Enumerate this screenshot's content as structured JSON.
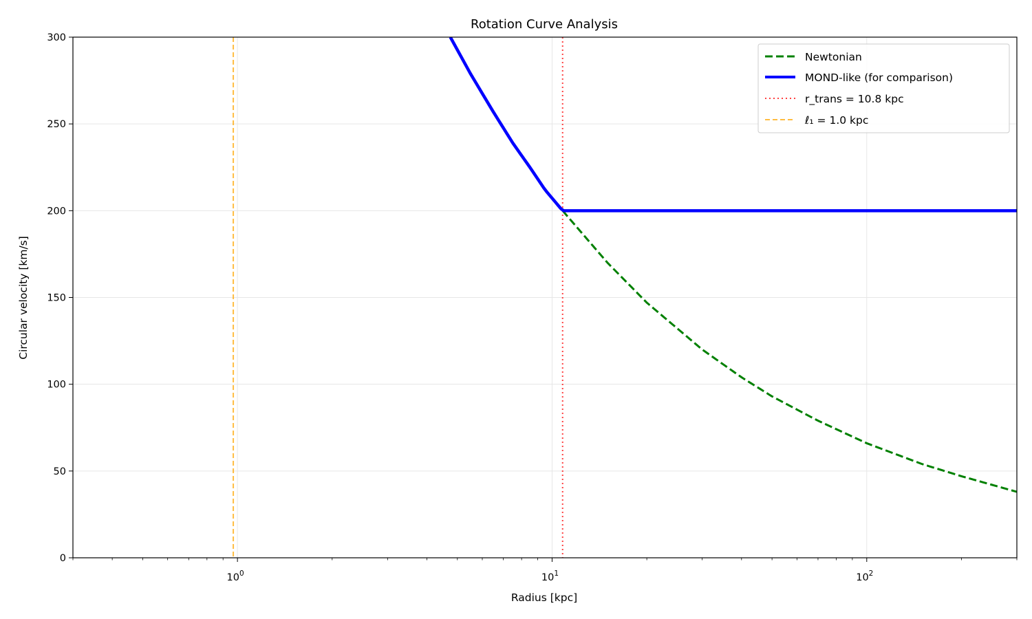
{
  "chart_data": {
    "type": "line",
    "title": "Rotation Curve Analysis",
    "xlabel": "Radius [kpc]",
    "ylabel": "Circular velocity [km/s]",
    "x_scale": "log",
    "xlim": [
      0.3,
      300
    ],
    "ylim": [
      0,
      300
    ],
    "grid": true,
    "legend_position": "top-right",
    "x_ticks": [
      {
        "value": 1,
        "label": "10",
        "exp": "0"
      },
      {
        "value": 10,
        "label": "10",
        "exp": "1"
      },
      {
        "value": 100,
        "label": "10",
        "exp": "2"
      }
    ],
    "y_ticks": [
      {
        "value": 0,
        "label": "0"
      },
      {
        "value": 50,
        "label": "50"
      },
      {
        "value": 100,
        "label": "100"
      },
      {
        "value": 150,
        "label": "150"
      },
      {
        "value": 200,
        "label": "200"
      },
      {
        "value": 250,
        "label": "250"
      },
      {
        "value": 300,
        "label": "300"
      }
    ],
    "series": [
      {
        "name": "Newtonian",
        "color": "#008000",
        "style": "dashed",
        "x": [
          10.8,
          15,
          20,
          30,
          40,
          50,
          70,
          100,
          150,
          200,
          300
        ],
        "y": [
          200,
          170,
          147,
          120,
          104,
          93,
          79,
          66,
          54,
          47,
          38
        ]
      },
      {
        "name": "MOND-like (for comparison)",
        "color": "#0000ff",
        "style": "solid",
        "x": [
          4.75,
          5.5,
          6.5,
          7.5,
          8.5,
          9.5,
          10.8,
          20,
          50,
          100,
          300
        ],
        "y": [
          300,
          279,
          257,
          239,
          225,
          212,
          200,
          200,
          200,
          200,
          200
        ]
      }
    ],
    "vlines": [
      {
        "name": "r_trans = 10.8 kpc",
        "x": 10.8,
        "color": "#ff0000",
        "style": "dotted"
      },
      {
        "name": "ℓ₁ = 1.0 kpc",
        "x": 0.97,
        "color": "#ffa500",
        "style": "dashed"
      }
    ]
  }
}
